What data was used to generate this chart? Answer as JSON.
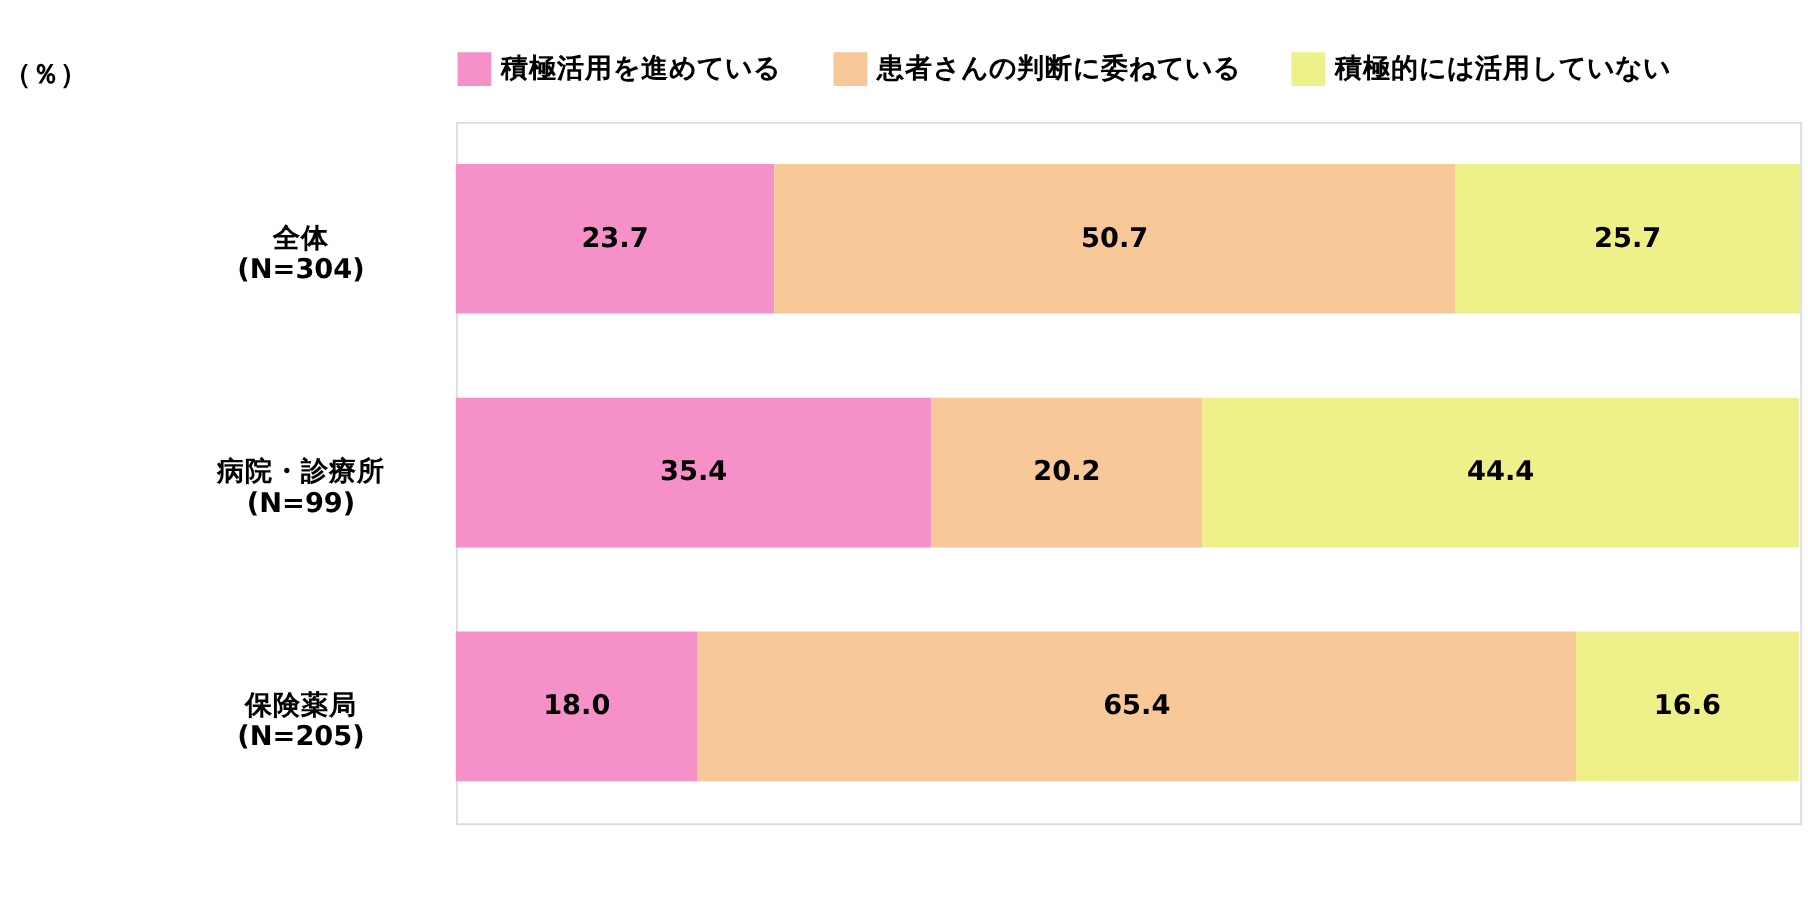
{
  "chart_data": {
    "type": "bar",
    "orientation": "horizontal",
    "stacked": true,
    "legend": "top",
    "annotations": [
      "（％）"
    ],
    "categories": [
      "全体\n(N=304)",
      "病院・診療所\n(N=99)",
      "保険薬局\n(N=205)"
    ],
    "series": [
      {
        "name": "積極活用を進めている",
        "color": "#f590c8",
        "values": [
          23.7,
          35.4,
          18.0
        ],
        "value_labels": [
          "23.7",
          "35.4",
          "18.0"
        ]
      },
      {
        "name": "患者さんの判断に委ねている",
        "color": "#f8c898",
        "values": [
          50.7,
          20.2,
          65.4
        ],
        "value_labels": [
          "50.7",
          "20.2",
          "65.4"
        ]
      },
      {
        "name": "積極的には活用していない",
        "color": "#eef08a",
        "values": [
          25.7,
          44.4,
          16.6
        ],
        "value_labels": [
          "25.7",
          "44.4",
          "16.6"
        ]
      }
    ]
  }
}
